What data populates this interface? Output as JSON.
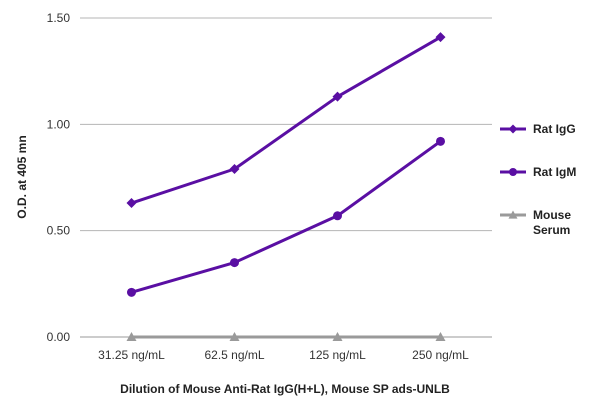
{
  "chart_data": {
    "type": "line",
    "title": "",
    "xlabel": "Dilution of Mouse Anti-Rat IgG(H+L), Mouse SP ads-UNLB",
    "ylabel": "O.D. at 405 mn",
    "categories": [
      "31.25 ng/mL",
      "62.5 ng/mL",
      "125 ng/mL",
      "250 ng/mL"
    ],
    "ylim": [
      0,
      1.5
    ],
    "yticks": [
      0.0,
      0.5,
      1.0,
      1.5
    ],
    "ytick_labels": [
      "0.00",
      "0.50",
      "1.00",
      "1.50"
    ],
    "grid": "horizontal",
    "legend_position": "right",
    "series": [
      {
        "name": "Rat IgG",
        "legend_lines": [
          "Rat IgG"
        ],
        "values": [
          0.63,
          0.79,
          1.13,
          1.41
        ],
        "color": "#5a0fa3",
        "marker": "diamond"
      },
      {
        "name": "Rat IgM",
        "legend_lines": [
          "Rat IgM"
        ],
        "values": [
          0.21,
          0.35,
          0.57,
          0.92
        ],
        "color": "#5a0fa3",
        "marker": "circle"
      },
      {
        "name": "Mouse Serum",
        "legend_lines": [
          "Mouse",
          "Serum"
        ],
        "values": [
          0.0,
          0.0,
          0.0,
          0.0
        ],
        "color": "#9a9a9a",
        "marker": "triangle"
      }
    ]
  }
}
